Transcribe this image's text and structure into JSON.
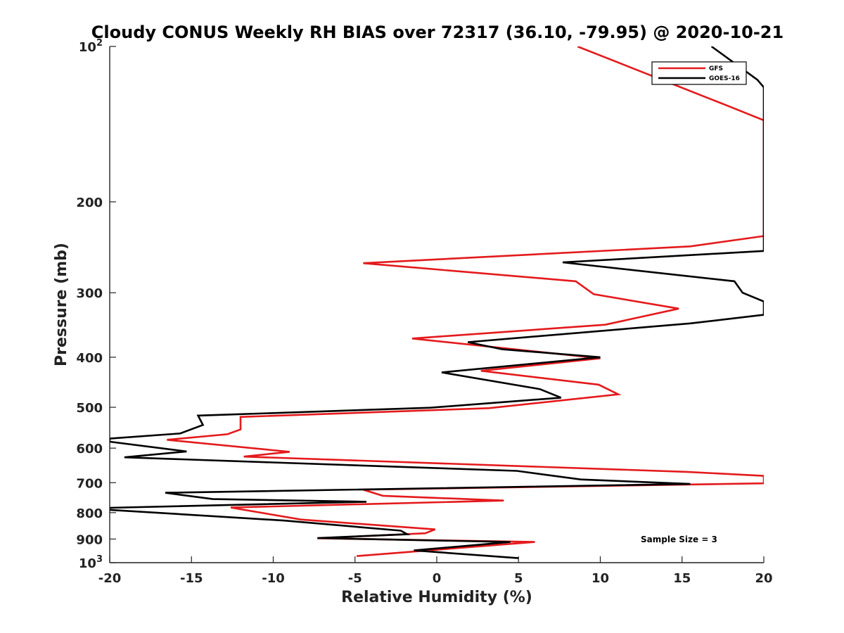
{
  "chart_data": {
    "type": "line",
    "title": "Cloudy CONUS Weekly RH BIAS over 72317 (36.10, -79.95) @ 2020-10-21",
    "xlabel": "Relative Humidity (%)",
    "ylabel": "Pressure (mb)",
    "xlim": [
      -20,
      20
    ],
    "ylim": [
      100,
      1000
    ],
    "y_scale": "log",
    "y_reversed": true,
    "grid": false,
    "legend_position": "top-right",
    "x_ticks": [
      "-20",
      "-15",
      "-10",
      "-5",
      "0",
      "5",
      "10",
      "15",
      "20"
    ],
    "x_tick_values": [
      -20,
      -15,
      -10,
      -5,
      0,
      5,
      10,
      15,
      20
    ],
    "y_ticks": [
      {
        "value": 100,
        "base": "10",
        "exp": "2"
      },
      {
        "value": 200,
        "label": "200"
      },
      {
        "value": 300,
        "label": "300"
      },
      {
        "value": 400,
        "label": "400"
      },
      {
        "value": 500,
        "label": "500"
      },
      {
        "value": 600,
        "label": "600"
      },
      {
        "value": 700,
        "label": "700"
      },
      {
        "value": 800,
        "label": "800"
      },
      {
        "value": 900,
        "label": "900"
      },
      {
        "value": 1000,
        "base": "10",
        "exp": "3"
      }
    ],
    "series": [
      {
        "name": "GFS",
        "color": "#e41a1c",
        "points": [
          [
            8.6,
            100
          ],
          [
            17.7,
            130
          ],
          [
            20.0,
            139
          ],
          [
            20.0,
            233
          ],
          [
            15.5,
            244
          ],
          [
            -4.5,
            263
          ],
          [
            8.5,
            285
          ],
          [
            9.6,
            302
          ],
          [
            14.8,
            322
          ],
          [
            10.3,
            346
          ],
          [
            -1.5,
            368
          ],
          [
            10.0,
            402
          ],
          [
            2.7,
            425
          ],
          [
            9.9,
            452
          ],
          [
            11.1,
            472
          ],
          [
            3.2,
            502
          ],
          [
            -12.0,
            522
          ],
          [
            -12.0,
            552
          ],
          [
            -12.8,
            564
          ],
          [
            -16.5,
            578
          ],
          [
            -9.0,
            610
          ],
          [
            -11.8,
            623
          ],
          [
            15.3,
            667
          ],
          [
            20.0,
            679
          ],
          [
            20.0,
            702
          ],
          [
            -4.5,
            722
          ],
          [
            -3.3,
            742
          ],
          [
            4.1,
            758
          ],
          [
            -12.6,
            782
          ],
          [
            -8.3,
            825
          ],
          [
            -0.1,
            862
          ],
          [
            -0.7,
            877
          ],
          [
            -7.3,
            897
          ],
          [
            6.0,
            912
          ],
          [
            -4.9,
            971
          ]
        ]
      },
      {
        "name": "GOES-16",
        "color": "#000000",
        "points": [
          [
            16.8,
            100
          ],
          [
            19.6,
            116
          ],
          [
            20.0,
            120
          ],
          [
            20.0,
            249
          ],
          [
            7.7,
            262
          ],
          [
            18.2,
            285
          ],
          [
            18.7,
            300
          ],
          [
            20.0,
            312
          ],
          [
            20.0,
            331
          ],
          [
            15.5,
            344
          ],
          [
            1.9,
            374
          ],
          [
            4.0,
            386
          ],
          [
            10.0,
            400
          ],
          [
            0.3,
            428
          ],
          [
            6.3,
            461
          ],
          [
            7.6,
            479
          ],
          [
            -0.4,
            501
          ],
          [
            -14.6,
            519
          ],
          [
            -14.3,
            541
          ],
          [
            -15.7,
            562
          ],
          [
            -20.0,
            575
          ],
          [
            -20.0,
            583
          ],
          [
            -15.3,
            609
          ],
          [
            -19.1,
            625
          ],
          [
            4.9,
            664
          ],
          [
            8.8,
            690
          ],
          [
            15.5,
            704
          ],
          [
            -16.6,
            732
          ],
          [
            -13.7,
            753
          ],
          [
            -4.3,
            762
          ],
          [
            -20.0,
            783
          ],
          [
            -20.0,
            790
          ],
          [
            -9.3,
            829
          ],
          [
            -2.2,
            867
          ],
          [
            -1.8,
            881
          ],
          [
            -7.3,
            896
          ],
          [
            4.5,
            912
          ],
          [
            -1.4,
            947
          ],
          [
            5.0,
            980
          ]
        ]
      }
    ],
    "legend": [
      {
        "label": "GFS",
        "color": "#e41a1c"
      },
      {
        "label": "GOES-16",
        "color": "#000000"
      }
    ],
    "annotation": "Sample Size = 3"
  }
}
